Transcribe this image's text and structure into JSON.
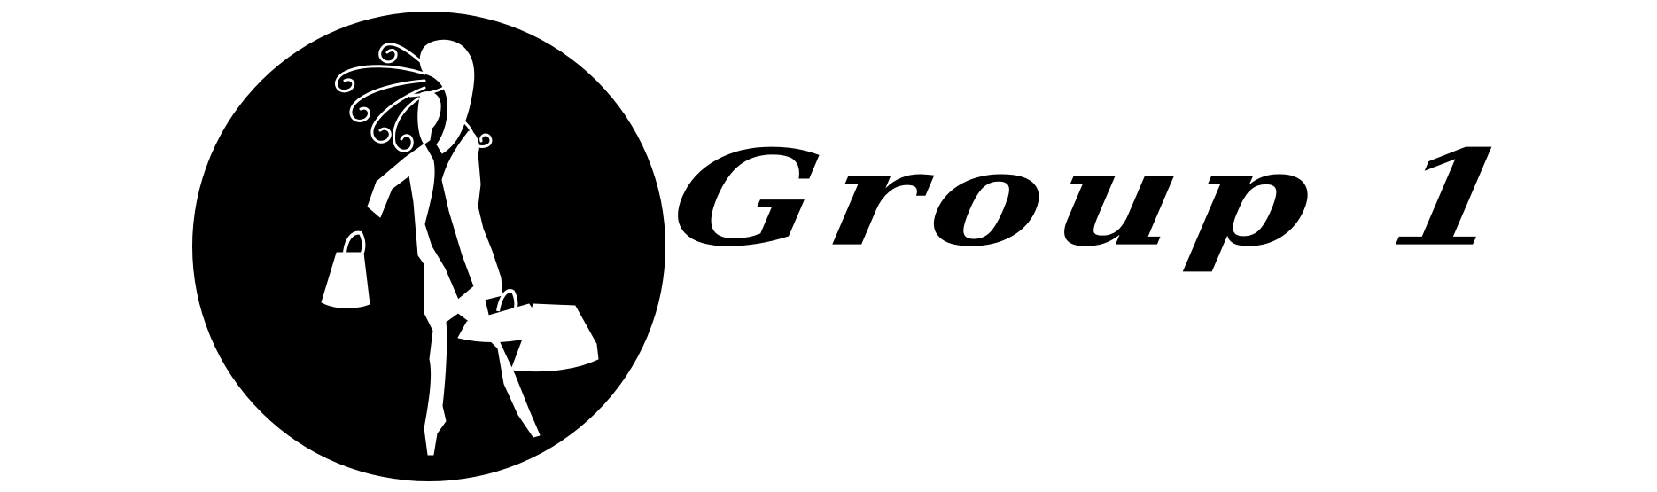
{
  "brand": {
    "name": "Group 1",
    "emblem_icon": "shopping-woman-silhouette-icon",
    "colors": {
      "foreground": "#000000",
      "background": "#ffffff"
    }
  }
}
